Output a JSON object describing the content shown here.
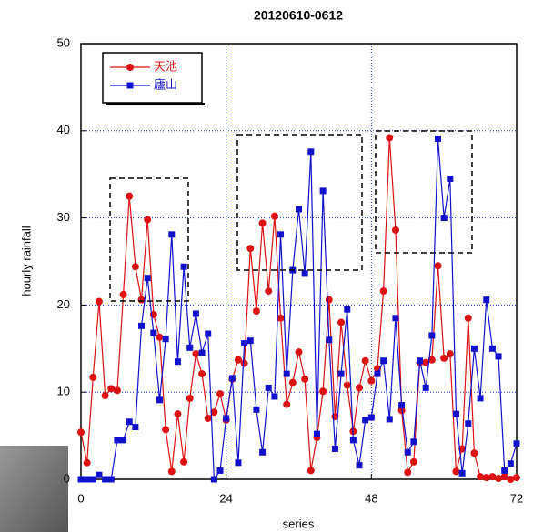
{
  "chart_data": {
    "type": "line",
    "title": "20120610-0612",
    "x_label": "series",
    "y_label": "hourly rainfall",
    "x": [
      0,
      1,
      2,
      3,
      4,
      5,
      6,
      7,
      8,
      9,
      10,
      11,
      12,
      13,
      14,
      15,
      16,
      17,
      18,
      19,
      20,
      21,
      22,
      23,
      24,
      25,
      26,
      27,
      28,
      29,
      30,
      31,
      32,
      33,
      34,
      35,
      36,
      37,
      38,
      39,
      40,
      41,
      42,
      43,
      44,
      45,
      46,
      47,
      48,
      49,
      50,
      51,
      52,
      53,
      54,
      55,
      56,
      57,
      58,
      59,
      60,
      61,
      62,
      63,
      64,
      65,
      66,
      67,
      68,
      69,
      70,
      71,
      72
    ],
    "series": [
      {
        "name": "天池",
        "color": "#dd1111",
        "marker": "circle",
        "values": [
          5.4,
          1.9,
          11.7,
          20.4,
          9.6,
          10.4,
          10.2,
          21.2,
          32.5,
          24.4,
          20.6,
          29.8,
          18.9,
          16.3,
          5.7,
          0.9,
          7.5,
          2.0,
          9.3,
          14.4,
          12.1,
          7.0,
          7.7,
          9.8,
          6.8,
          11.5,
          13.7,
          13.3,
          26.5,
          19.3,
          29.4,
          21.6,
          30.2,
          18.5,
          8.6,
          11.1,
          14.6,
          11.5,
          1.0,
          4.8,
          10.1,
          20.6,
          7.2,
          18.0,
          10.8,
          5.5,
          10.5,
          13.6,
          11.3,
          12.7,
          21.6,
          39.2,
          28.6,
          7.9,
          0.8,
          2.0,
          13.4,
          13.4,
          13.7,
          24.5,
          13.9,
          14.4,
          0.9,
          3.5,
          18.5,
          3.0,
          0.3,
          0.2,
          0.3,
          0.1,
          0.3,
          0.0,
          0.2
        ]
      },
      {
        "name": "廬山",
        "color": "#1111cc",
        "marker": "square",
        "values": [
          0,
          0,
          0,
          0.5,
          0,
          0,
          4.5,
          4.5,
          6.6,
          6.0,
          17.6,
          23.1,
          16.8,
          9.1,
          16.1,
          28.1,
          13.5,
          24.4,
          15.1,
          19.0,
          14.5,
          16.7,
          0,
          1.0,
          7.0,
          11.6,
          1.9,
          15.6,
          15.9,
          8.0,
          3.1,
          10.5,
          9.5,
          28.1,
          12.1,
          24.0,
          31.0,
          23.6,
          37.6,
          5.2,
          33.1,
          16.0,
          3.5,
          12.1,
          19.5,
          4.5,
          1.6,
          6.8,
          7.1,
          12.1,
          13.6,
          6.9,
          18.5,
          8.5,
          3.1,
          4.3,
          13.6,
          10.5,
          16.5,
          39.1,
          30.0,
          34.5,
          7.5,
          0.7,
          6.4,
          15.0,
          9.3,
          20.6,
          15.0,
          14.1,
          1.0,
          1.8,
          4.1
        ]
      }
    ],
    "xlim": [
      0,
      72
    ],
    "xticks": [
      0,
      24,
      48,
      72
    ],
    "ylim": [
      0,
      50
    ],
    "yticks": [
      0,
      10,
      20,
      30,
      40,
      50
    ],
    "grid": true,
    "legend": "upper left"
  }
}
